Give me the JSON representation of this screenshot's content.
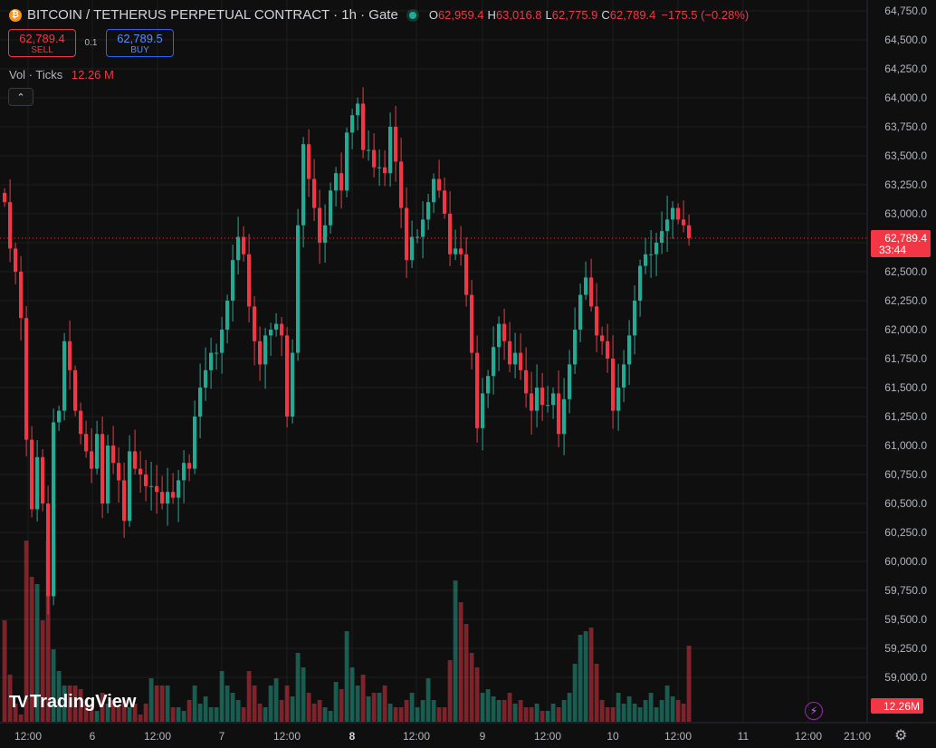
{
  "header": {
    "coin_glyph": "₿",
    "title": "BITCOIN / TETHERUS PERPETUAL CONTRACT · 1h · Gate",
    "open_key": "O",
    "open": "62,959.4",
    "high_key": "H",
    "high": "63,016.8",
    "low_key": "L",
    "low": "62,775.9",
    "close_key": "C",
    "close": "62,789.4",
    "change": "−175.5 (−0.28%)"
  },
  "trade": {
    "sell_price": "62,789.4",
    "sell_label": "SELL",
    "spread": "0.1",
    "buy_price": "62,789.5",
    "buy_label": "BUY"
  },
  "volume": {
    "label": "Vol · Ticks",
    "value": "12.26 M"
  },
  "collapse_glyph": "⌃",
  "logo": {
    "mark": "TV",
    "text": "TradingView"
  },
  "bolt_glyph": "⚡",
  "gear_glyph": "⚙",
  "colors": {
    "up": "#22ab94",
    "down": "#f23645",
    "background": "#0f0f0f",
    "grid": "#1e1e1e"
  },
  "chart_data": {
    "type": "candlestick",
    "interval": "1h",
    "y_axis": {
      "ticks": [
        "64,750.0",
        "64,500.0",
        "64,250.0",
        "64,000.0",
        "63,750.0",
        "63,500.0",
        "63,250.0",
        "63,000.0",
        "62,750.0",
        "62,500.0",
        "62,250.0",
        "62,000.0",
        "61,750.0",
        "61,500.0",
        "61,250.0",
        "61,000.0",
        "60,750.0",
        "60,500.0",
        "60,250.0",
        "60,000.0",
        "59,750.0",
        "59,500.0",
        "59,250.0",
        "59,000.0"
      ],
      "range": [
        58800,
        64850
      ]
    },
    "x_axis": {
      "ticks": [
        "12:00",
        "6",
        "12:00",
        "7",
        "12:00",
        "8",
        "12:00",
        "9",
        "12:00",
        "10",
        "12:00",
        "11",
        "12:00",
        "21:00"
      ]
    },
    "last_price_label": "62,789.4",
    "countdown": "33:44",
    "volume_label": "12.26M",
    "closes": [
      63100,
      62700,
      62500,
      62100,
      61050,
      60450,
      60900,
      60500,
      59700,
      61200,
      61300,
      61900,
      61650,
      61300,
      61100,
      60950,
      60800,
      61100,
      60500,
      61000,
      60850,
      60700,
      60350,
      60950,
      60800,
      60750,
      60650,
      60650,
      60600,
      60500,
      60600,
      60550,
      60700,
      60850,
      60800,
      61250,
      61500,
      61650,
      61800,
      61800,
      62000,
      62250,
      62600,
      62800,
      62650,
      62200,
      61900,
      61700,
      61950,
      62000,
      62050,
      61950,
      61250,
      61800,
      62900,
      63600,
      63300,
      63050,
      62750,
      62900,
      63200,
      63350,
      63200,
      63700,
      63850,
      63950,
      63550,
      63550,
      63400,
      63400,
      63350,
      63750,
      63450,
      63050,
      62600,
      62800,
      62800,
      62950,
      63100,
      63300,
      63200,
      63000,
      62650,
      62700,
      62650,
      62300,
      61800,
      61150,
      61450,
      61600,
      61850,
      62050,
      61900,
      61700,
      61800,
      61650,
      61450,
      61300,
      61500,
      61350,
      61350,
      61450,
      61100,
      61400,
      61700,
      62000,
      62300,
      62450,
      62200,
      61950,
      61900,
      61750,
      61300,
      61500,
      61700,
      61950,
      62250,
      62550,
      62650,
      62650,
      62750,
      62850,
      62950,
      63050,
      62950,
      62900,
      62789.4
    ],
    "volumes": [
      2.8,
      1.3,
      0.5,
      0.2,
      5.0,
      4.0,
      3.8,
      2.8,
      5.0,
      2.0,
      1.4,
      1.0,
      1.0,
      1.0,
      0.9,
      0.6,
      0.5,
      0.3,
      0.8,
      0.5,
      0.6,
      0.4,
      0.6,
      0.4,
      0.5,
      0.2,
      0.5,
      1.2,
      1.0,
      1.0,
      1.0,
      0.4,
      0.4,
      0.3,
      0.6,
      1.0,
      0.5,
      0.7,
      0.4,
      0.4,
      1.4,
      1.0,
      0.8,
      0.6,
      0.4,
      1.4,
      1.0,
      0.5,
      0.4,
      1.0,
      1.2,
      0.6,
      1.0,
      0.7,
      1.9,
      1.5,
      0.8,
      0.5,
      0.6,
      0.4,
      0.3,
      1.1,
      0.9,
      2.5,
      1.5,
      1.0,
      1.3,
      0.7,
      0.8,
      0.8,
      1.0,
      0.5,
      0.4,
      0.4,
      0.6,
      0.8,
      0.4,
      0.6,
      1.2,
      0.6,
      0.4,
      0.4,
      1.7,
      3.9,
      3.3,
      2.7,
      1.9,
      1.5,
      0.8,
      0.9,
      0.7,
      0.6,
      0.6,
      0.8,
      0.5,
      0.6,
      0.4,
      0.4,
      0.5,
      0.3,
      0.3,
      0.5,
      0.4,
      0.6,
      0.8,
      1.6,
      2.4,
      2.5,
      2.6,
      1.6,
      0.6,
      0.4,
      0.4,
      0.8,
      0.5,
      0.7,
      0.5,
      0.4,
      0.6,
      0.8,
      0.4,
      0.6,
      1.0,
      0.7,
      0.6,
      0.5,
      2.1
    ]
  }
}
